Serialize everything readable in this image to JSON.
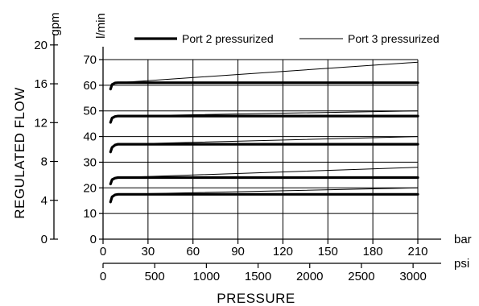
{
  "chart_data": {
    "type": "line",
    "ylabel": "REGULATED FLOW",
    "xlabel": "PRESSURE",
    "units": {
      "y_primary": "l/min",
      "y_secondary": "gpm",
      "x_primary": "bar",
      "x_secondary": "psi"
    },
    "xlim": [
      0,
      210
    ],
    "ylim": [
      0,
      70
    ],
    "x_ticks": [
      "0",
      "30",
      "60",
      "90",
      "120",
      "150",
      "180",
      "210"
    ],
    "y_ticks": [
      "0",
      "10",
      "20",
      "30",
      "40",
      "50",
      "60",
      "70"
    ],
    "x_secondary_ticks": [
      "0",
      "500",
      "1000",
      "1500",
      "2000",
      "2500",
      "3000"
    ],
    "y_secondary_ticks": [
      "0",
      "4",
      "8",
      "12",
      "16",
      "20"
    ],
    "grid": true,
    "legend_position": "top",
    "series": [
      {
        "name": "Port 2 pressurized",
        "style": "thick",
        "curves": [
          {
            "x": [
              5,
              6,
              8,
              10,
              15,
              210
            ],
            "y": [
              14.5,
              16.5,
              17.3,
              17.5,
              17.5,
              17.5
            ]
          },
          {
            "x": [
              5,
              6,
              8,
              10,
              15,
              210
            ],
            "y": [
              21.5,
              23.2,
              23.8,
              24,
              24,
              24
            ]
          },
          {
            "x": [
              5,
              6,
              8,
              10,
              15,
              210
            ],
            "y": [
              34,
              35.8,
              36.7,
              37,
              37,
              37
            ]
          },
          {
            "x": [
              5,
              6,
              8,
              10,
              15,
              210
            ],
            "y": [
              45.5,
              47.2,
              47.8,
              48,
              48,
              48
            ]
          },
          {
            "x": [
              5,
              6,
              8,
              10,
              15,
              210
            ],
            "y": [
              58.5,
              60.3,
              60.9,
              61,
              61,
              61
            ]
          }
        ]
      },
      {
        "name": "Port 3 pressurized",
        "style": "thin",
        "curves": [
          {
            "x": [
              10,
              210
            ],
            "y": [
              17.5,
              20
            ]
          },
          {
            "x": [
              10,
              210
            ],
            "y": [
              24,
              28
            ]
          },
          {
            "x": [
              10,
              210
            ],
            "y": [
              37,
              40
            ]
          },
          {
            "x": [
              10,
              210
            ],
            "y": [
              48,
              50
            ]
          },
          {
            "x": [
              10,
              210
            ],
            "y": [
              61,
              69
            ]
          }
        ]
      }
    ]
  }
}
